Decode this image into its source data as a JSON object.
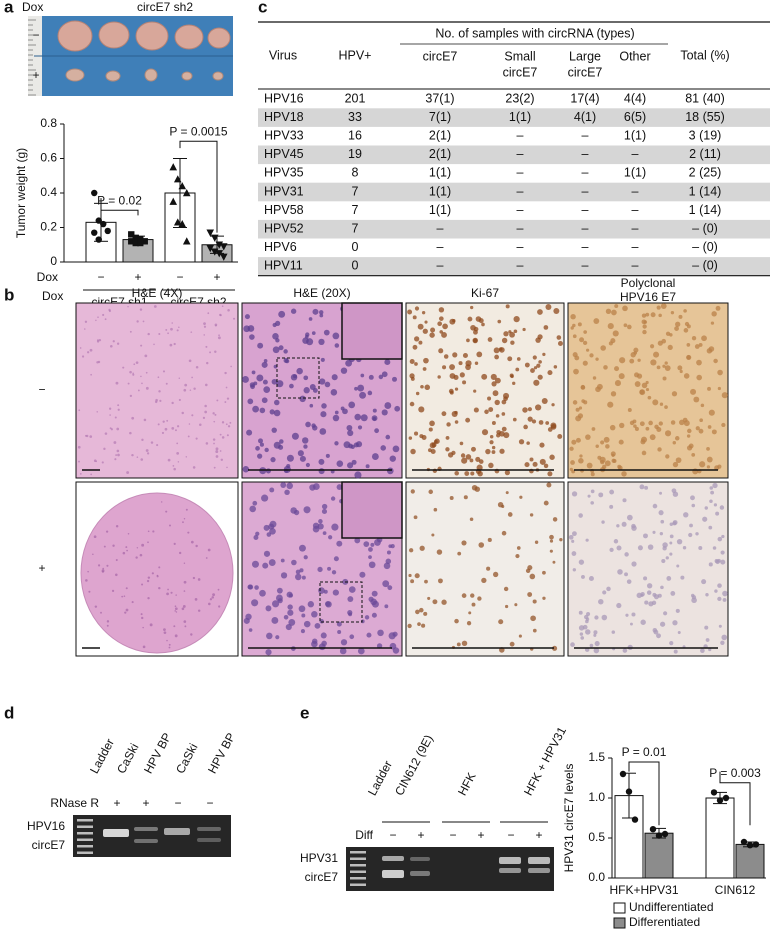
{
  "panel_labels": [
    "a",
    "b",
    "c",
    "d",
    "e"
  ],
  "photo": {
    "labels": [
      "Dox",
      "circE7 sh2"
    ],
    "rows": [
      "−",
      "+"
    ]
  },
  "chart_data": [
    {
      "type": "bar",
      "ylabel": "Tumor weight (g)",
      "xlabel": "Dox",
      "categories": [
        "−",
        "+",
        "−",
        "+"
      ],
      "groups": [
        "circE7 sh1",
        "circE7 sh2"
      ],
      "values": [
        0.23,
        0.13,
        0.4,
        0.1
      ],
      "errors": [
        0.11,
        0.02,
        0.2,
        0.05
      ],
      "colors": [
        "#ffffff",
        "#b3b3b3",
        "#ffffff",
        "#b3b3b3"
      ],
      "markers": [
        "circle",
        "square",
        "triangle-up",
        "triangle-down"
      ],
      "points": [
        [
          0.4,
          0.24,
          0.22,
          0.18,
          0.17,
          0.13
        ],
        [
          0.16,
          0.14,
          0.13,
          0.12,
          0.12,
          0.11,
          0.11
        ],
        [
          0.55,
          0.48,
          0.44,
          0.4,
          0.35,
          0.23,
          0.22,
          0.12
        ],
        [
          0.17,
          0.14,
          0.1,
          0.09,
          0.08,
          0.06,
          0.05,
          0.03
        ]
      ],
      "annotations": [
        "P = 0.02",
        "P = 0.0015"
      ],
      "ylim": [
        0,
        0.8
      ],
      "yticks": [
        0,
        0.2,
        0.4,
        0.6,
        0.8
      ]
    },
    {
      "type": "grouped_bar",
      "ylabel": "HPV31 circE7 levels",
      "categories": [
        "HFK+HPV31",
        "CIN612"
      ],
      "series": [
        {
          "name": "Undifferentiated",
          "color": "#ffffff",
          "values": [
            1.03,
            1.0
          ],
          "errors": [
            0.28,
            0.07
          ],
          "points": [
            [
              1.3,
              1.08,
              0.73
            ],
            [
              1.07,
              0.97,
              1.0
            ]
          ]
        },
        {
          "name": "Differentiated",
          "color": "#8c8c8c",
          "values": [
            0.56,
            0.42
          ],
          "errors": [
            0.06,
            0.03
          ],
          "points": [
            [
              0.61,
              0.53,
              0.55
            ],
            [
              0.45,
              0.41,
              0.42
            ]
          ]
        }
      ],
      "annotations": [
        "P = 0.01",
        "P = 0.003"
      ],
      "ylim": [
        0,
        1.5
      ],
      "yticks": [
        {
          "value": 0,
          "label": "0.0"
        },
        {
          "value": 0.5,
          "label": "0.5"
        },
        {
          "value": 1,
          "label": "1.0"
        },
        {
          "value": 1.5,
          "label": "1.5"
        }
      ]
    }
  ],
  "table": {
    "group_header": "No. of samples with circRNA (types)",
    "columns": [
      [
        "Virus"
      ],
      [
        "HPV+"
      ],
      [
        "circE7"
      ],
      [
        "Small",
        "circE7"
      ],
      [
        "Large",
        "circE7"
      ],
      [
        "Other"
      ],
      [
        "Total (%)"
      ]
    ],
    "rows": [
      [
        "HPV16",
        "201",
        "37(1)",
        "23(2)",
        "17(4)",
        "4(4)",
        "81 (40)"
      ],
      [
        "HPV18",
        "33",
        "7(1)",
        "1(1)",
        "4(1)",
        "6(5)",
        "18 (55)"
      ],
      [
        "HPV33",
        "16",
        "2(1)",
        "–",
        "–",
        "1(1)",
        "3 (19)"
      ],
      [
        "HPV45",
        "19",
        "2(1)",
        "–",
        "–",
        "–",
        "2 (11)"
      ],
      [
        "HPV35",
        "8",
        "1(1)",
        "–",
        "–",
        "1(1)",
        "2 (25)"
      ],
      [
        "HPV31",
        "7",
        "1(1)",
        "–",
        "–",
        "–",
        "1 (14)"
      ],
      [
        "HPV58",
        "7",
        "1(1)",
        "–",
        "–",
        "–",
        "1 (14)"
      ],
      [
        "HPV52",
        "7",
        "–",
        "–",
        "–",
        "–",
        "– (0)"
      ],
      [
        "HPV6",
        "0",
        "–",
        "–",
        "–",
        "–",
        "– (0)"
      ],
      [
        "HPV11",
        "0",
        "–",
        "–",
        "–",
        "–",
        "– (0)"
      ]
    ]
  },
  "histology": {
    "row_header": "Dox",
    "rows": [
      "−",
      "+"
    ],
    "columns": [
      [
        "H&E (4X)"
      ],
      [
        "H&E (20X)"
      ],
      [
        "Ki-67"
      ],
      [
        "Polyclonal",
        "HPV16 E7"
      ]
    ]
  },
  "gel_d": {
    "lanes": [
      "Ladder",
      "CaSki",
      "HPV BP",
      "CaSki",
      "HPV BP"
    ],
    "treatment": "RNase R",
    "signs": [
      "+",
      "+",
      "−",
      "−"
    ],
    "band_label": [
      "HPV16",
      "circE7"
    ]
  },
  "gel_e": {
    "lanes": [
      "Ladder",
      "CIN612 (9E)",
      "HFK",
      "HFK + HPV31"
    ],
    "treatment": "Diff",
    "signs": [
      "−",
      "+",
      "−",
      "+",
      "−",
      "+"
    ],
    "band_label": [
      "HPV31",
      "circE7"
    ]
  }
}
